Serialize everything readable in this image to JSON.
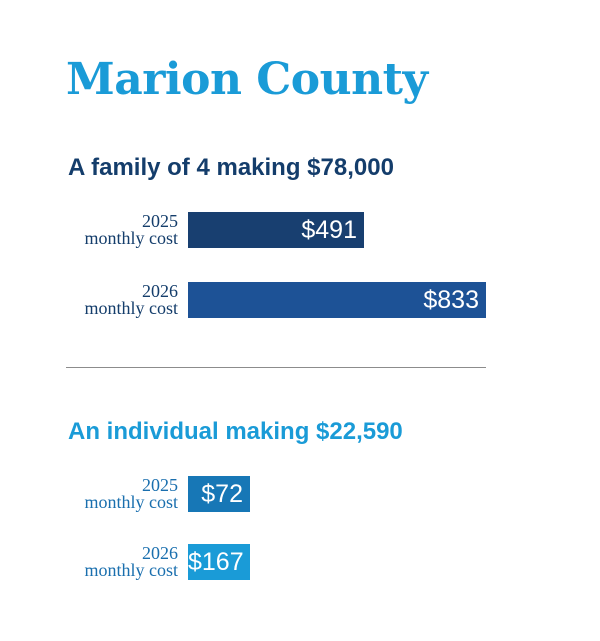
{
  "title": "Marion County",
  "colors": {
    "title": "#1a9bd7",
    "family_heading": "#143d6b",
    "family_label": "#143d6b",
    "individual_heading": "#1a9bd7",
    "individual_label": "#1a6fae"
  },
  "chart_data": [
    {
      "type": "bar",
      "orientation": "horizontal",
      "title": "A family of 4 making $78,000",
      "categories": [
        "2025 monthly cost",
        "2026 monthly cost"
      ],
      "category_lines": [
        [
          "2025",
          "monthly cost"
        ],
        [
          "2026",
          "monthly cost"
        ]
      ],
      "values": [
        491,
        833
      ],
      "value_labels": [
        "$491",
        "$833"
      ],
      "bar_colors": [
        "#183f70",
        "#1d5296"
      ],
      "xlim": [
        0,
        833
      ]
    },
    {
      "type": "bar",
      "orientation": "horizontal",
      "title": "An individual making $22,590",
      "categories": [
        "2025 monthly cost",
        "2026 monthly cost"
      ],
      "category_lines": [
        [
          "2025",
          "monthly cost"
        ],
        [
          "2026",
          "monthly cost"
        ]
      ],
      "values": [
        72,
        167
      ],
      "value_labels": [
        "$72",
        "$167"
      ],
      "bar_colors": [
        "#1777b6",
        "#1a9bd7"
      ],
      "xlim": [
        0,
        833
      ]
    }
  ]
}
